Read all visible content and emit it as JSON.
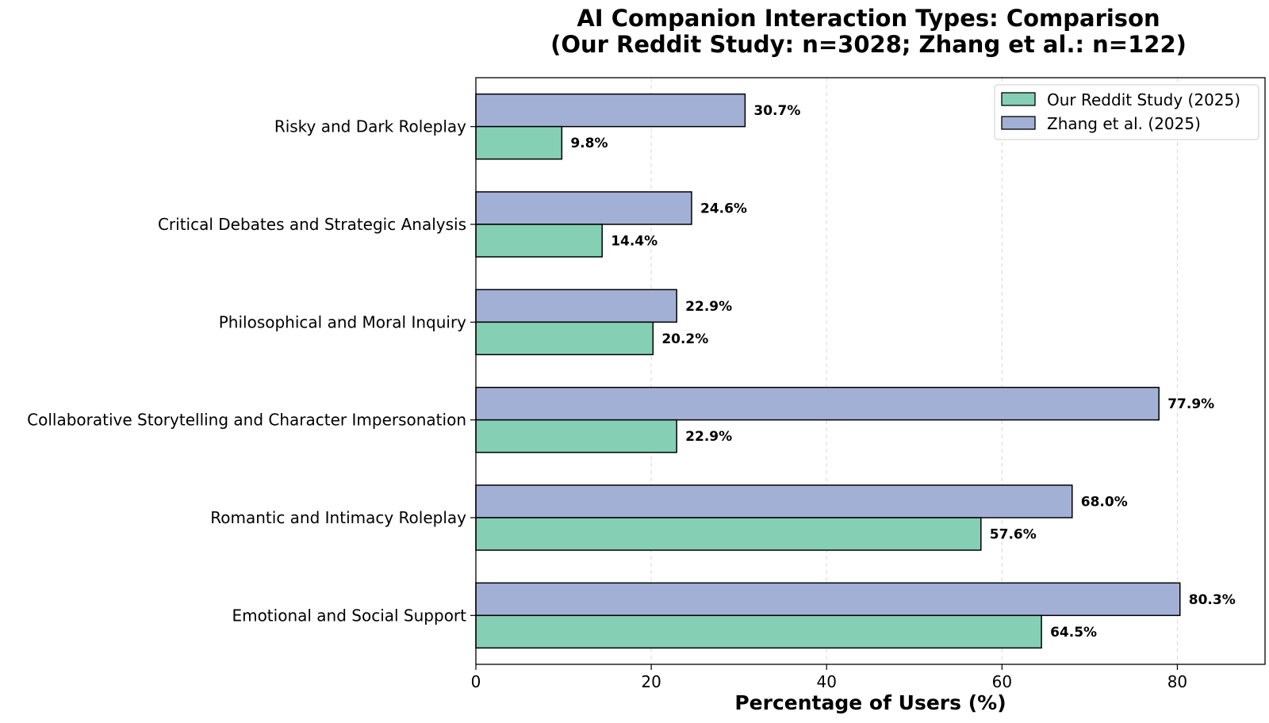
{
  "chart_data": {
    "type": "bar",
    "orientation": "horizontal",
    "title": "AI Companion Interaction Types: Comparison",
    "subtitle": "(Our Reddit Study: n=3028; Zhang et al.: n=122)",
    "xlabel": "Percentage of Users (%)",
    "ylabel": "",
    "xlim": [
      0,
      90
    ],
    "xticks": [
      0,
      20,
      40,
      60,
      80
    ],
    "grid": "x-dashed",
    "legend_position": "top-right",
    "categories": [
      "Emotional and Social Support",
      "Romantic and Intimacy Roleplay",
      "Collaborative Storytelling and Character Impersonation",
      "Philosophical and Moral Inquiry",
      "Critical Debates and Strategic Analysis",
      "Risky and Dark Roleplay"
    ],
    "series": [
      {
        "name": "Our Reddit Study (2025)",
        "color": "#85d0b5",
        "values": [
          64.5,
          57.6,
          22.9,
          20.2,
          14.4,
          9.8
        ],
        "labels": [
          "64.5%",
          "57.6%",
          "22.9%",
          "20.2%",
          "14.4%",
          "9.8%"
        ]
      },
      {
        "name": "Zhang et al. (2025)",
        "color": "#a3b0d6",
        "values": [
          80.3,
          68.0,
          77.9,
          22.9,
          24.6,
          30.7
        ],
        "labels": [
          "80.3%",
          "68.0%",
          "77.9%",
          "22.9%",
          "24.6%",
          "30.7%"
        ]
      }
    ]
  }
}
